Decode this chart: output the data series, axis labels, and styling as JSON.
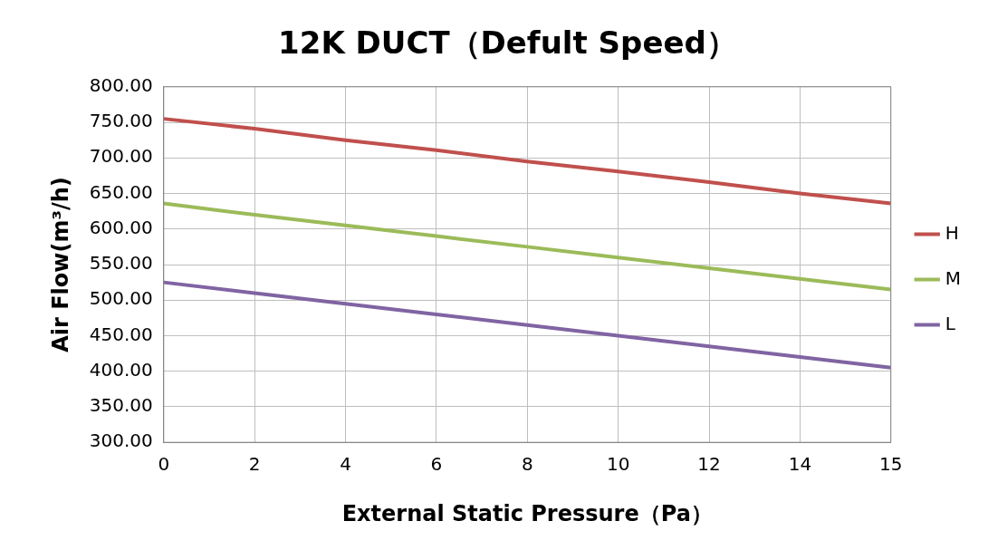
{
  "chart_data": {
    "type": "line",
    "title": "12K DUCT（Defult Speed）",
    "xlabel": "External Static Pressure（Pa）",
    "ylabel": "Air Flow(m³/h)",
    "categories": [
      "0",
      "2",
      "4",
      "6",
      "8",
      "10",
      "12",
      "14",
      "15"
    ],
    "series": [
      {
        "name": "H",
        "color": "#c0504d",
        "values": [
          755,
          741,
          725,
          711,
          695,
          681,
          666,
          650,
          636
        ]
      },
      {
        "name": "M",
        "color": "#9bbb59",
        "values": [
          636,
          620,
          605,
          590,
          575,
          560,
          545,
          530,
          515
        ]
      },
      {
        "name": "L",
        "color": "#8064a2",
        "values": [
          525,
          510,
          495,
          480,
          465,
          450,
          435,
          420,
          405
        ]
      }
    ],
    "ylim": [
      300,
      800
    ],
    "yticks": [
      {
        "value": 300,
        "label": "300.00"
      },
      {
        "value": 350,
        "label": "350.00"
      },
      {
        "value": 400,
        "label": "400.00"
      },
      {
        "value": 450,
        "label": "450.00"
      },
      {
        "value": 500,
        "label": "500.00"
      },
      {
        "value": 550,
        "label": "550.00"
      },
      {
        "value": 600,
        "label": "600.00"
      },
      {
        "value": 650,
        "label": "650.00"
      },
      {
        "value": 700,
        "label": "700.00"
      },
      {
        "value": 750,
        "label": "750.00"
      },
      {
        "value": 800,
        "label": "800.00"
      }
    ],
    "grid": true,
    "legend": "right",
    "marker": "none",
    "line_style": "solid"
  }
}
